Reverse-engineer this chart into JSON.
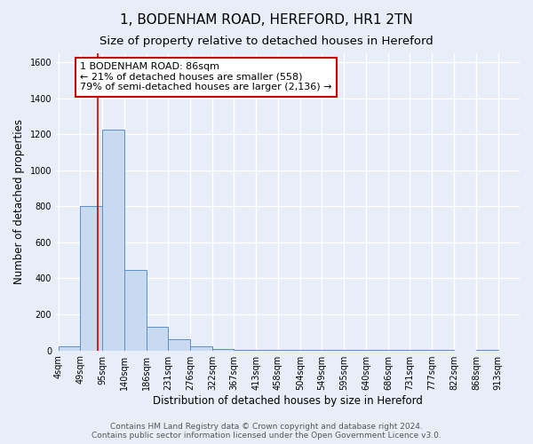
{
  "title": "1, BODENHAM ROAD, HEREFORD, HR1 2TN",
  "subtitle": "Size of property relative to detached houses in Hereford",
  "xlabel": "Distribution of detached houses by size in Hereford",
  "ylabel": "Number of detached properties",
  "bin_edges": [
    4,
    49,
    95,
    140,
    186,
    231,
    276,
    322,
    367,
    413,
    458,
    504,
    549,
    595,
    640,
    686,
    731,
    777,
    822,
    868,
    913
  ],
  "bar_heights": [
    25,
    800,
    1225,
    445,
    130,
    60,
    25,
    10,
    5,
    3,
    3,
    3,
    2,
    2,
    1,
    1,
    1,
    1,
    0,
    1
  ],
  "bar_color": "#c8d9f0",
  "bar_edge_color": "#5b8ec4",
  "property_size": 86,
  "red_line_color": "#cc0000",
  "annotation_text": "1 BODENHAM ROAD: 86sqm\n← 21% of detached houses are smaller (558)\n79% of semi-detached houses are larger (2,136) →",
  "annotation_box_facecolor": "#ffffff",
  "annotation_border_color": "#cc0000",
  "ylim": [
    0,
    1650
  ],
  "yticks": [
    0,
    200,
    400,
    600,
    800,
    1000,
    1200,
    1400,
    1600
  ],
  "footer_text": "Contains HM Land Registry data © Crown copyright and database right 2024.\nContains public sector information licensed under the Open Government Licence v3.0.",
  "background_color": "#e8eef8",
  "grid_color": "#ffffff",
  "title_fontsize": 11,
  "subtitle_fontsize": 9.5,
  "axis_label_fontsize": 8.5,
  "tick_fontsize": 7,
  "annotation_fontsize": 8,
  "footer_fontsize": 6.5
}
